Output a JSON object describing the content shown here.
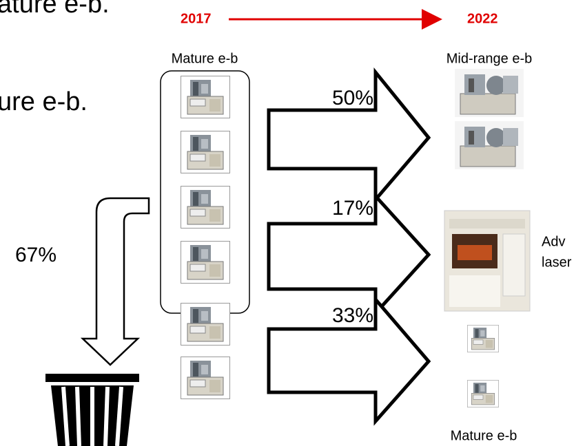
{
  "slide": {
    "text_lines": [
      "ature e-b.",
      "ure e-b."
    ],
    "timeline": {
      "start": "2017",
      "end": "2022"
    },
    "source_label": "Mature e-b",
    "targets": {
      "mid_range": "Mid-range e-b",
      "laser": [
        "Adv",
        "laser"
      ],
      "mature": "Mature e-b"
    },
    "flows": {
      "to_mid_range": "50%",
      "to_laser": "17%",
      "to_mature": "33%",
      "discarded": "67%"
    }
  }
}
